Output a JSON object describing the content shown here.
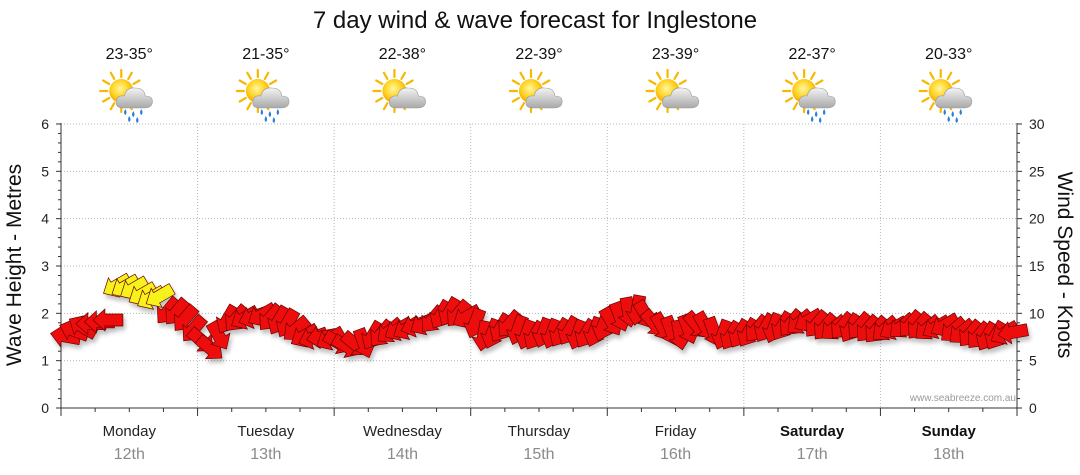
{
  "chart_data": {
    "type": "wind-wave-forecast",
    "title": "7 day wind & wave forecast for Inglestone",
    "ylabel_left": "Wave Height - Metres",
    "ylabel_right": "Wind Speed - Knots",
    "ylim_left": [
      0,
      6
    ],
    "ylim_right": [
      0,
      30
    ],
    "yticks_left": [
      "0",
      "1",
      "2",
      "3",
      "4",
      "5",
      "6"
    ],
    "yticks_right": [
      "0",
      "5",
      "10",
      "15",
      "20",
      "25",
      "30"
    ],
    "grid": true,
    "credit": "www.seabreeze.com.au",
    "days": [
      {
        "name": "Monday",
        "date": "12th",
        "temp": "23-35°",
        "icon": "sun-cloud-rain-icon",
        "bold": false
      },
      {
        "name": "Tuesday",
        "date": "13th",
        "temp": "21-35°",
        "icon": "sun-cloud-rain-icon",
        "bold": false
      },
      {
        "name": "Wednesday",
        "date": "14th",
        "temp": "22-38°",
        "icon": "sun-cloud-icon",
        "bold": false
      },
      {
        "name": "Thursday",
        "date": "15th",
        "temp": "22-39°",
        "icon": "sun-cloud-icon",
        "bold": false
      },
      {
        "name": "Friday",
        "date": "16th",
        "temp": "23-39°",
        "icon": "sun-cloud-icon",
        "bold": false
      },
      {
        "name": "Saturday",
        "date": "17th",
        "temp": "22-37°",
        "icon": "sun-cloud-rain-icon",
        "bold": true
      },
      {
        "name": "Sunday",
        "date": "18th",
        "temp": "20-33°",
        "icon": "sun-cloud-rain-icon",
        "bold": true
      }
    ],
    "wind_colors": {
      "light": "#f7f21a",
      "strong": "#ee1111"
    },
    "wind_series": {
      "name": "Wind",
      "unit": "knots",
      "points_per_day": 16,
      "speed": [
        7.6,
        8.2,
        8.6,
        8.9,
        9.1,
        9.3,
        12.9,
        12.8,
        12.6,
        12.0,
        11.6,
        11.8,
        10.2,
        10.1,
        9.4,
        8.3,
        7.1,
        6.3,
        7.6,
        9.3,
        9.4,
        9.5,
        9.6,
        9.8,
        9.5,
        9.2,
        8.9,
        8.3,
        7.6,
        7.4,
        7.5,
        7.3,
        6.9,
        6.5,
        6.7,
        6.8,
        7.6,
        7.8,
        8.1,
        8.3,
        8.4,
        8.7,
        8.9,
        9.3,
        9.8,
        10.1,
        9.9,
        9.6,
        8.9,
        7.6,
        7.8,
        8.4,
        8.8,
        8.2,
        7.7,
        7.6,
        7.9,
        7.8,
        7.9,
        8.1,
        7.7,
        7.8,
        8.0,
        8.6,
        9.1,
        9.6,
        10.1,
        10.3,
        9.8,
        8.9,
        8.5,
        8.1,
        7.7,
        8.3,
        8.7,
        8.6,
        8.0,
        7.7,
        7.6,
        7.8,
        7.9,
        8.3,
        8.4,
        8.4,
        8.6,
        8.9,
        9.0,
        9.2,
        8.8,
        8.5,
        8.4,
        8.6,
        8.4,
        8.6,
        8.3,
        8.2,
        8.3,
        8.4,
        8.6,
        8.8,
        8.6,
        8.4,
        8.5,
        8.7,
        8.2,
        8.0,
        7.8,
        7.6,
        7.5,
        7.6,
        7.9,
        8.0
      ],
      "direction_deg": [
        100,
        110,
        120,
        90,
        90,
        90,
        60,
        60,
        60,
        60,
        60,
        60,
        40,
        40,
        40,
        40,
        310,
        310,
        330,
        30,
        40,
        60,
        70,
        60,
        40,
        30,
        30,
        50,
        60,
        70,
        80,
        60,
        300,
        300,
        310,
        340,
        30,
        40,
        50,
        60,
        60,
        70,
        60,
        40,
        30,
        30,
        40,
        60,
        20,
        10,
        20,
        30,
        40,
        20,
        20,
        30,
        20,
        20,
        30,
        30,
        20,
        30,
        20,
        20,
        330,
        340,
        350,
        10,
        330,
        320,
        330,
        340,
        350,
        340,
        320,
        330,
        340,
        20,
        30,
        30,
        30,
        40,
        30,
        20,
        30,
        40,
        50,
        60,
        40,
        40,
        50,
        40,
        30,
        40,
        40,
        40,
        50,
        60,
        50,
        40,
        40,
        50,
        60,
        60,
        50,
        50,
        40,
        40,
        30,
        30,
        60,
        80
      ]
    }
  }
}
